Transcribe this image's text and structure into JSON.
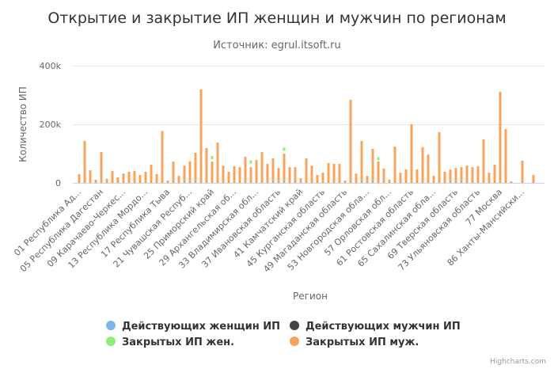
{
  "chart_data": {
    "type": "bar",
    "title": "Открытие и закрытие ИП женщин и мужчин по регионам",
    "subtitle": "Источник: egrul.itsoft.ru",
    "xlabel": "Регион",
    "ylabel": "Количество ИП",
    "ylim": [
      0,
      400000
    ],
    "yticks": [
      0,
      200000,
      400000
    ],
    "ytick_labels": [
      "0",
      "200k",
      "400k"
    ],
    "grid": true,
    "legend_position": "bottom",
    "credits": "Highcharts.com",
    "category_count": 83,
    "tick_labels": [
      {
        "index": 0,
        "label": "01 Республика Ад..."
      },
      {
        "index": 4,
        "label": "05 Республика Дагестан"
      },
      {
        "index": 8,
        "label": "09 Карачаево-Черкес..."
      },
      {
        "index": 12,
        "label": "13 Республика Мордо..."
      },
      {
        "index": 16,
        "label": "17 Республика Тыва"
      },
      {
        "index": 20,
        "label": "21 Чувашская Респуб..."
      },
      {
        "index": 24,
        "label": "25 Приморский край"
      },
      {
        "index": 28,
        "label": "29 Архангельская об..."
      },
      {
        "index": 32,
        "label": "33 Владимирская обл..."
      },
      {
        "index": 36,
        "label": "37 Ивановская область"
      },
      {
        "index": 40,
        "label": "41 Камчатский край"
      },
      {
        "index": 44,
        "label": "45 Курганская область"
      },
      {
        "index": 48,
        "label": "49 Магаданская область"
      },
      {
        "index": 52,
        "label": "53 Новгородская обла..."
      },
      {
        "index": 56,
        "label": "57 Орловская обл..."
      },
      {
        "index": 60,
        "label": "61 Ростовская область"
      },
      {
        "index": 64,
        "label": "65 Сахалинская обла..."
      },
      {
        "index": 68,
        "label": "69 Тверская область"
      },
      {
        "index": 72,
        "label": "73 Ульяновская область"
      },
      {
        "index": 76,
        "label": "77 Москва"
      },
      {
        "index": 80,
        "label": "86 Ханты-Мансийски..."
      }
    ],
    "series": [
      {
        "name": "Действующих женщин ИП",
        "color": "#7cb5ec",
        "visible_marks": false,
        "values": []
      },
      {
        "name": "Действующих мужчин ИП",
        "color": "#434348",
        "visible_marks": false,
        "values": []
      },
      {
        "name": "Закрытых ИП жен.",
        "color": "#90ed7d",
        "values": [
          {
            "index": 24,
            "value": 8000
          },
          {
            "index": 31,
            "value": 12000
          },
          {
            "index": 37,
            "value": 10000
          },
          {
            "index": 54,
            "value": 4000
          }
        ]
      },
      {
        "name": "Закрытых ИП муж.",
        "color": "#f7a35c",
        "values": [
          30000,
          143000,
          43000,
          11000,
          105000,
          14000,
          41000,
          19000,
          32000,
          38000,
          41000,
          27000,
          38000,
          62000,
          30000,
          177000,
          8000,
          73000,
          24000,
          59000,
          74000,
          103000,
          319000,
          119000,
          73000,
          138000,
          59000,
          38000,
          57000,
          54000,
          89000,
          54000,
          78000,
          105000,
          65000,
          84000,
          51000,
          100000,
          54000,
          54000,
          16000,
          84000,
          59000,
          27000,
          35000,
          68000,
          65000,
          65000,
          8000,
          284000,
          32000,
          143000,
          24000,
          116000,
          73000,
          49000,
          11000,
          124000,
          35000,
          46000,
          200000,
          46000,
          122000,
          97000,
          24000,
          173000,
          38000,
          46000,
          51000,
          54000,
          59000,
          54000,
          57000,
          149000,
          35000,
          62000,
          311000,
          184000,
          5000,
          0,
          76000,
          0,
          27000
        ]
      }
    ]
  }
}
